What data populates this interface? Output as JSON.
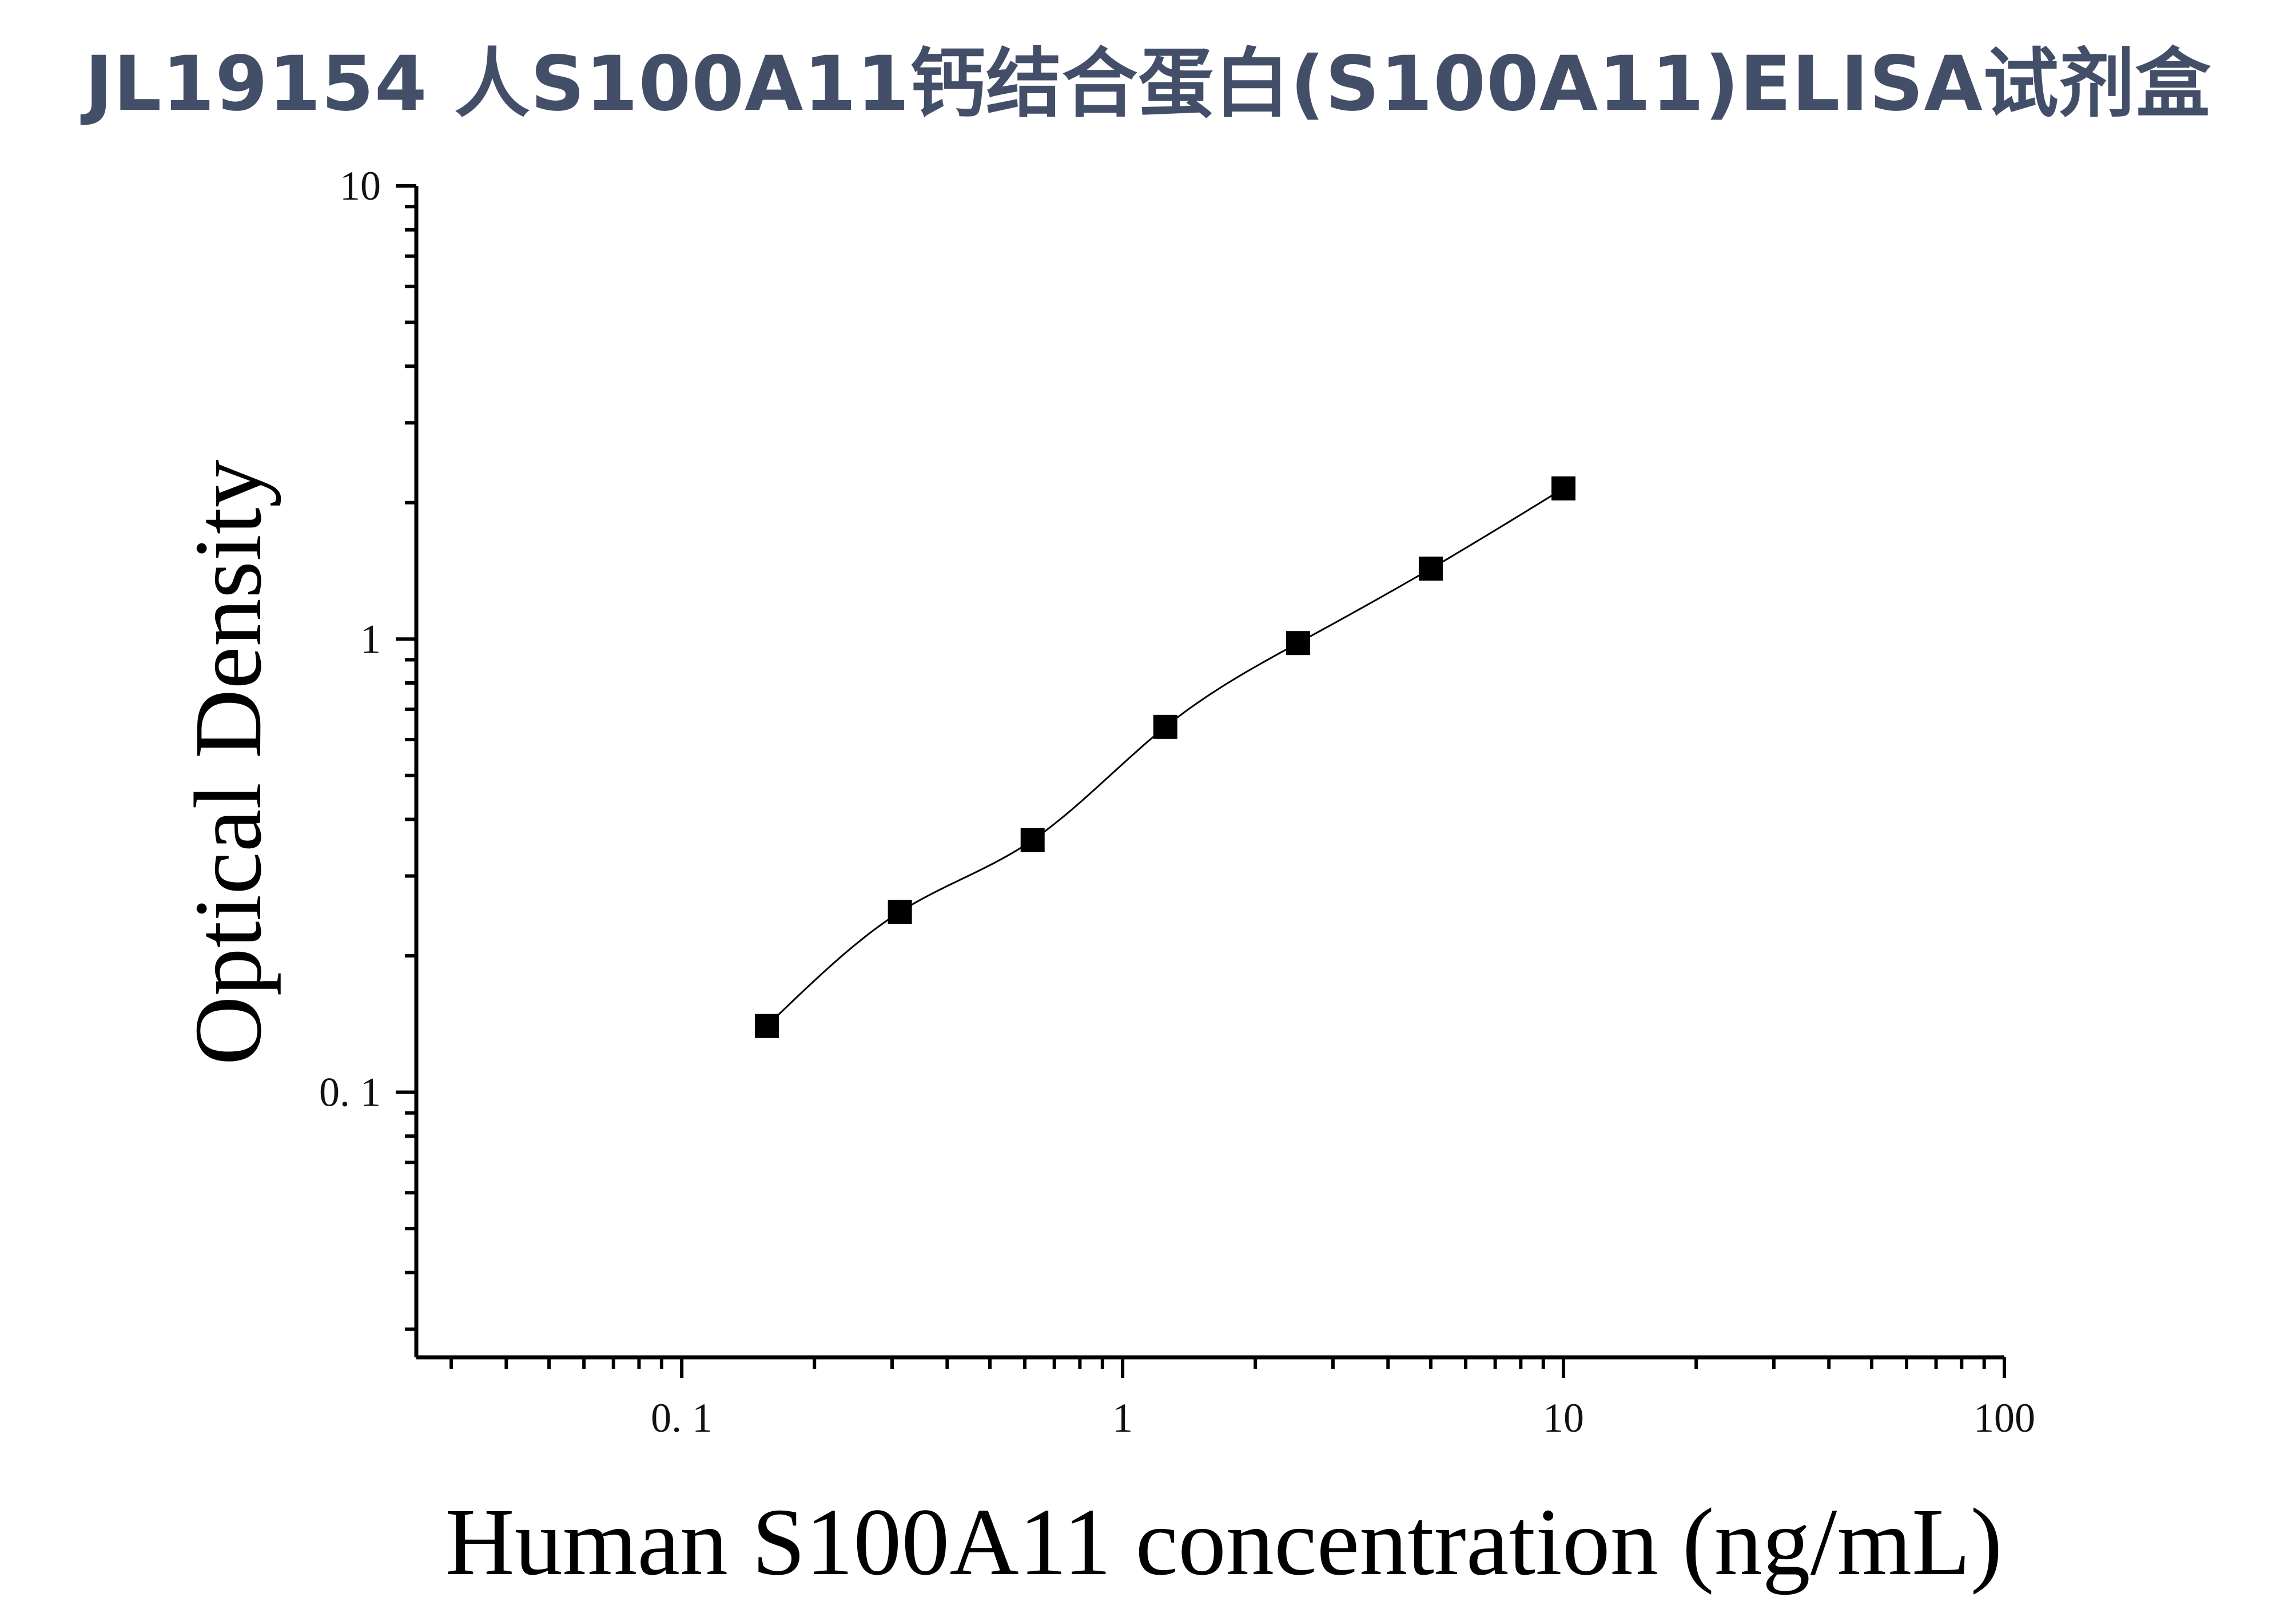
{
  "title": "JL19154 人S100A11钙结合蛋白(S100A11)ELISA试剂盒",
  "chart_data": {
    "type": "scatter",
    "xlabel": "Human S100A11 concentration (ng/mL)",
    "ylabel": "Optical Density",
    "xscale": "log",
    "yscale": "log",
    "xlim": [
      0.025,
      100
    ],
    "ylim": [
      0.026,
      10
    ],
    "x_ticks": [
      {
        "value": 0.1,
        "label": "0. 1"
      },
      {
        "value": 1,
        "label": "1"
      },
      {
        "value": 10,
        "label": "10"
      },
      {
        "value": 100,
        "label": "100"
      }
    ],
    "y_ticks": [
      {
        "value": 0.1,
        "label": "0. 1"
      },
      {
        "value": 1,
        "label": "1"
      },
      {
        "value": 10,
        "label": "10"
      }
    ],
    "grid": false,
    "series": [
      {
        "marker": "square",
        "fit_line": true,
        "color": "#000000",
        "x": [
          0.156,
          0.3125,
          0.625,
          1.25,
          2.5,
          5,
          10
        ],
        "y": [
          0.14,
          0.25,
          0.36,
          0.64,
          0.98,
          1.43,
          2.15
        ]
      }
    ]
  }
}
